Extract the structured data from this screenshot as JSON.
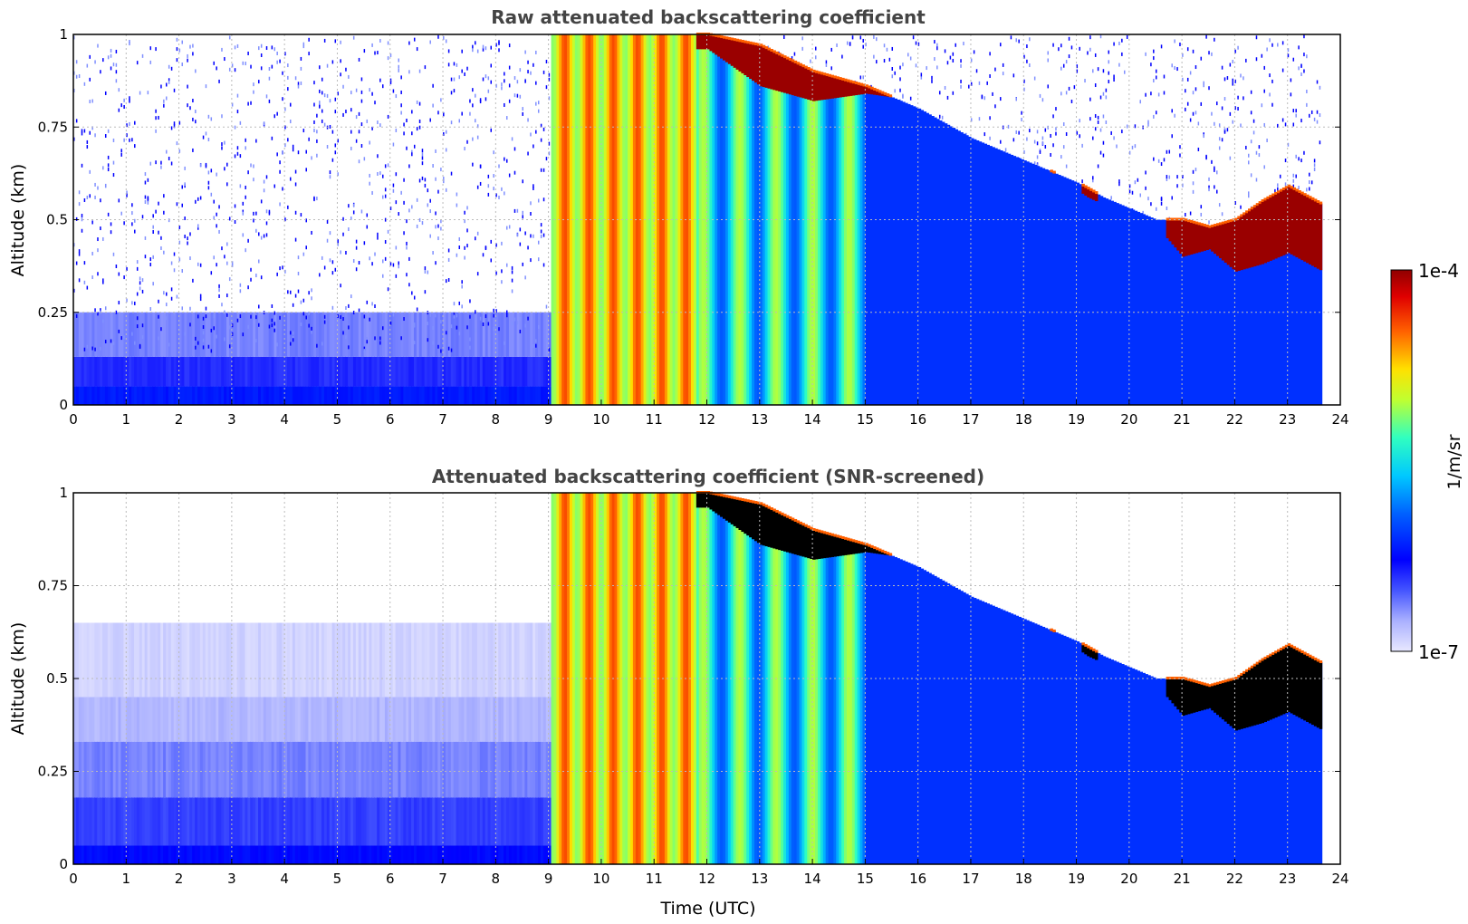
{
  "chart_data": [
    {
      "type": "heatmap",
      "title": "Raw attenuated backscattering coefficient",
      "xlabel": "",
      "ylabel": "Altitude (km)",
      "xlim": [
        0,
        24
      ],
      "ylim": [
        0,
        1
      ],
      "xticks": [
        "0",
        "1",
        "2",
        "3",
        "4",
        "5",
        "6",
        "7",
        "8",
        "9",
        "10",
        "11",
        "12",
        "13",
        "14",
        "15",
        "16",
        "17",
        "18",
        "19",
        "20",
        "21",
        "22",
        "23",
        "24"
      ],
      "yticks": [
        "0",
        "0.25",
        "0.5",
        "0.75",
        "1"
      ],
      "grid": true,
      "data_end_hour": 23.65,
      "cloud_top_km": [
        [
          9,
          1.0
        ],
        [
          12,
          1.0
        ],
        [
          13,
          0.97
        ],
        [
          14,
          0.9
        ],
        [
          15,
          0.86
        ],
        [
          16,
          0.8
        ],
        [
          17,
          0.72
        ],
        [
          18,
          0.66
        ],
        [
          18.5,
          0.63
        ],
        [
          19,
          0.6
        ],
        [
          19.5,
          0.56
        ],
        [
          20,
          0.53
        ],
        [
          20.5,
          0.5
        ],
        [
          21,
          0.5
        ],
        [
          21.5,
          0.48
        ],
        [
          22,
          0.5
        ],
        [
          22.5,
          0.55
        ],
        [
          23,
          0.59
        ],
        [
          23.65,
          0.54
        ]
      ],
      "cloud_base_km": [
        [
          12,
          0.96
        ],
        [
          13,
          0.86
        ],
        [
          14,
          0.82
        ],
        [
          15,
          0.84
        ],
        [
          16,
          0.82
        ],
        [
          18.2,
          0.66
        ],
        [
          18.6,
          0.62
        ],
        [
          19.2,
          0.56
        ],
        [
          19.5,
          0.54
        ],
        [
          20.7,
          0.45
        ],
        [
          21,
          0.4
        ],
        [
          21.5,
          0.42
        ],
        [
          22,
          0.36
        ],
        [
          22.5,
          0.38
        ],
        [
          23,
          0.41
        ],
        [
          23.65,
          0.36
        ]
      ],
      "fog_layer_hours": [
        9.0,
        15.0
      ]
    },
    {
      "type": "heatmap",
      "title": "Attenuated backscattering coefficient (SNR-screened)",
      "xlabel": "Time (UTC)",
      "ylabel": "Altitude (km)",
      "xlim": [
        0,
        24
      ],
      "ylim": [
        0,
        1
      ],
      "xticks": [
        "0",
        "1",
        "2",
        "3",
        "4",
        "5",
        "6",
        "7",
        "8",
        "9",
        "10",
        "11",
        "12",
        "13",
        "14",
        "15",
        "16",
        "17",
        "18",
        "19",
        "20",
        "21",
        "22",
        "23",
        "24"
      ],
      "yticks": [
        "0",
        "0.25",
        "0.5",
        "0.75",
        "1"
      ],
      "grid": true,
      "data_end_hour": 23.65,
      "saturated_color": "#000000"
    }
  ],
  "colorbar": {
    "max_label": "1e-4",
    "min_label": "1e-7",
    "label": "1/m/sr",
    "colormap": "jet",
    "range": [
      1e-07,
      0.0001
    ]
  }
}
